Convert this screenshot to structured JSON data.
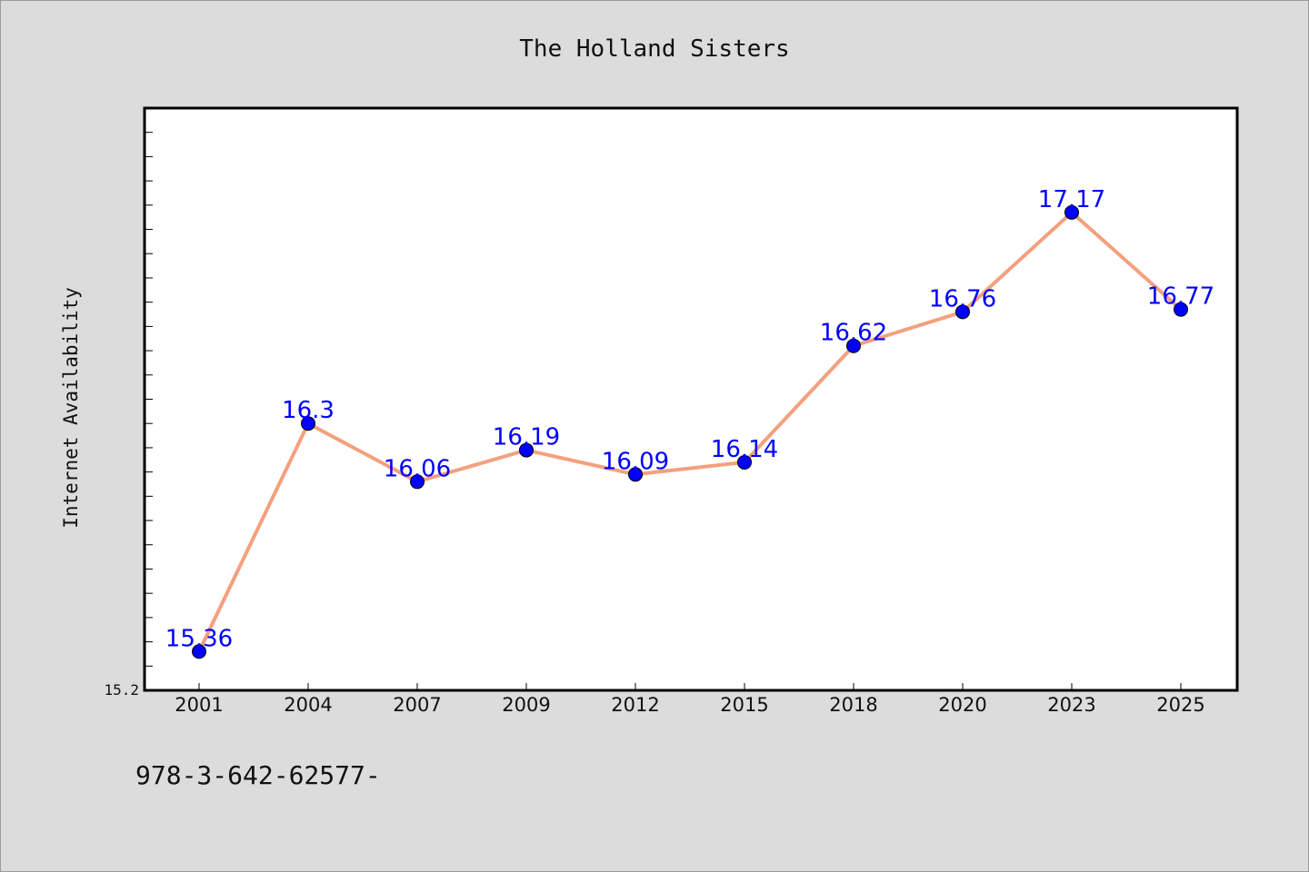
{
  "footnote": "978-3-642-62577-",
  "colors": {
    "background": "#dcdcdc",
    "plot_background": "#ffffff",
    "line": "#f4a07e",
    "marker": "#0000ff",
    "point_label": "#0000ff"
  },
  "chart_data": {
    "type": "line",
    "title": "The Holland Sisters",
    "xlabel": "",
    "ylabel": "Internet Availability",
    "categories": [
      "2001",
      "2004",
      "2007",
      "2009",
      "2012",
      "2015",
      "2018",
      "2020",
      "2023",
      "2025"
    ],
    "series": [
      {
        "values": [
          15.36,
          16.3,
          16.06,
          16.19,
          16.09,
          16.14,
          16.62,
          16.76,
          17.17,
          16.77
        ]
      }
    ],
    "ylim": [
      15.2,
      17.6
    ],
    "yticks_labeled": [
      "15.2"
    ],
    "ytick_step": 0.1,
    "grid": false,
    "legend": "none"
  }
}
